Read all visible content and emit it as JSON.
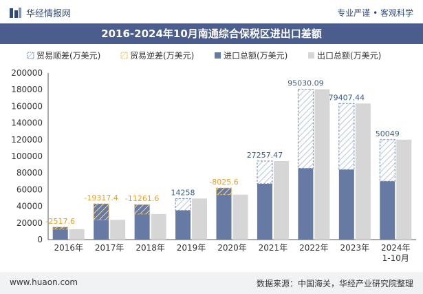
{
  "header": {
    "brand": "华经情报网",
    "tagline": "专业严谨 • 客观科学"
  },
  "footer": {
    "website": "www.huaon.com",
    "source": "数据来源：中国海关，华经产业研究院整理"
  },
  "colors": {
    "import_bar": "#667aa4",
    "total_bar": "#d6d6d6",
    "surplus_border": "#6f87b5",
    "deficit_border": "#f0b84a",
    "surplus_label": "#3e5c88",
    "deficit_label": "#e8a020",
    "title_bar": "#4a5d8c"
  },
  "chart_data": {
    "type": "bar",
    "title": "2016-2024年10月南通综合保税区进出口差额",
    "categories": [
      "2016年",
      "2017年",
      "2018年",
      "2019年",
      "2020年",
      "2021年",
      "2022年",
      "2023年",
      "2024年\n1-10月"
    ],
    "ylim": [
      0,
      200000
    ],
    "yticks": [
      0,
      20000,
      40000,
      60000,
      80000,
      100000,
      120000,
      140000,
      160000,
      180000,
      200000
    ],
    "legend": [
      "贸易顺差(万美元)",
      "贸易逆差(万美元)",
      "进口总额(万美元)",
      "出口总额(万美元)"
    ],
    "legend_position": "top",
    "series": [
      {
        "name": "进口总额(万美元)",
        "values": [
          15000,
          43000,
          42000,
          35000,
          62000,
          67000,
          85500,
          84000,
          70000
        ]
      },
      {
        "name": "出口总额(万美元)",
        "values": [
          12500,
          23700,
          30700,
          49300,
          53900,
          94300,
          180500,
          163400,
          120000
        ]
      }
    ],
    "balance": [
      {
        "value": -2517.6,
        "label": "-2517.6"
      },
      {
        "value": -19317.4,
        "label": "-19317.4"
      },
      {
        "value": -11261.6,
        "label": "-11261.6"
      },
      {
        "value": 14258,
        "label": "14258"
      },
      {
        "value": -8025.6,
        "label": "-8025.6"
      },
      {
        "value": 27257.47,
        "label": "27257.47"
      },
      {
        "value": 95030.09,
        "label": "95030.09"
      },
      {
        "value": 79407.44,
        "label": "79407.44"
      },
      {
        "value": 50049,
        "label": "50049"
      }
    ]
  }
}
